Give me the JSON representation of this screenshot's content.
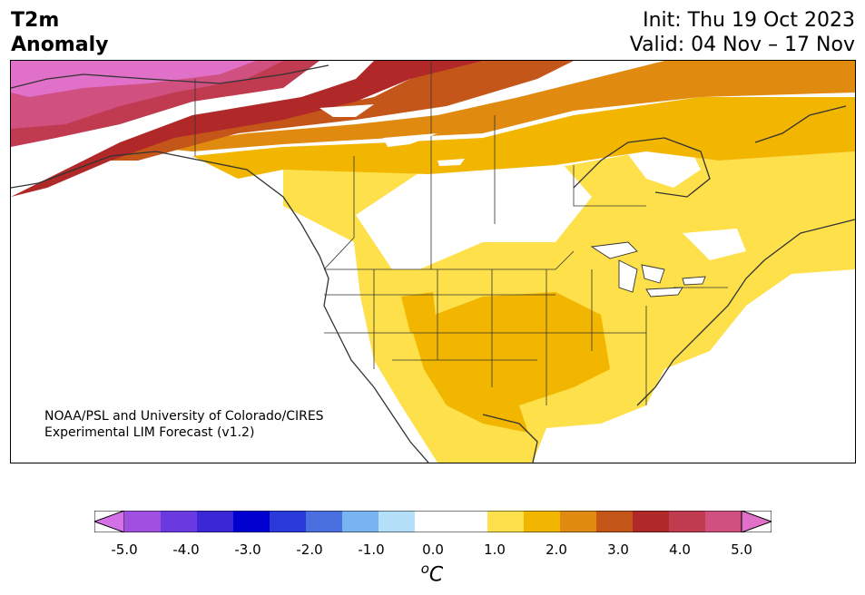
{
  "title": {
    "line1": "T2m",
    "line2": "Anomaly"
  },
  "dates": {
    "init": "Init: Thu 19 Oct 2023",
    "valid": "Valid: 04 Nov – 17 Nov"
  },
  "credit": {
    "line1": "NOAA/PSL and University of Colorado/CIRES",
    "line2": "Experimental LIM Forecast (v1.2)"
  },
  "colorbar": {
    "colors": [
      "#d470e8",
      "#a050e0",
      "#6a3ae0",
      "#3a28d6",
      "#0000d0",
      "#2a3ad8",
      "#4a70e0",
      "#78b4f0",
      "#b4e0fa",
      "#ffffff",
      "#ffffff",
      "#fde04a",
      "#f2b600",
      "#e08a10",
      "#c4561a",
      "#b02828",
      "#c03a50",
      "#d05080",
      "#e070c8"
    ],
    "ticks": [
      "-5.0",
      "-4.0",
      "-3.0",
      "-2.0",
      "-1.0",
      "0.0",
      "1.0",
      "2.0",
      "3.0",
      "4.0",
      "5.0"
    ],
    "unit_base": "C",
    "unit_sup": "o"
  }
}
